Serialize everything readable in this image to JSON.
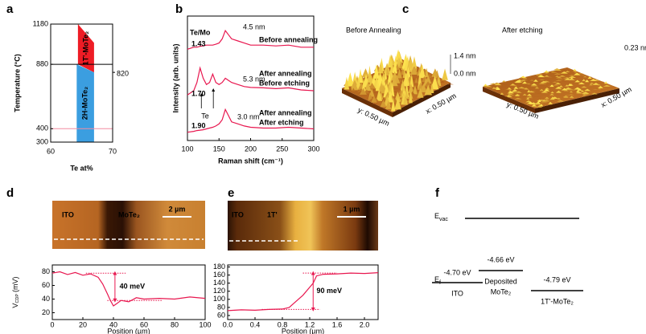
{
  "panels": {
    "a": {
      "label": "a",
      "type": "phase",
      "ylabel": "Temperature (°C)",
      "xlabel": "Te at%",
      "xlim": [
        60,
        70
      ],
      "xticks": [
        60,
        70
      ],
      "ylim": [
        300,
        1180
      ],
      "yticks": [
        300,
        400,
        880,
        1180
      ],
      "hlines": [
        {
          "value": 880,
          "color": "#000000"
        },
        {
          "value": 400,
          "color": "#f48ca0"
        }
      ],
      "boundary_label": 820,
      "regions": [
        {
          "name": "1T'-MoTe₂",
          "color": "#ee1c25",
          "x": [
            64.4,
            64.4,
            67,
            67
          ],
          "y": [
            880,
            1180,
            1040,
            820
          ]
        },
        {
          "name": "2H-MoTe₂",
          "color": "#3b9ee0",
          "x": [
            64.2,
            64.2,
            67,
            67
          ],
          "y": [
            300,
            880,
            820,
            300
          ]
        }
      ]
    },
    "b": {
      "label": "b",
      "type": "line",
      "ylabel": "Intensity (arb. units)",
      "xlabel": "Raman shift (cm⁻¹)",
      "xlim": [
        100,
        300
      ],
      "xticks": [
        100,
        150,
        200,
        250,
        300
      ],
      "ylim": [
        0,
        3
      ],
      "header": "Te/Mo",
      "peak_label": "Te",
      "x": [
        100,
        110,
        115,
        120,
        125,
        130,
        135,
        140,
        145,
        150,
        155,
        160,
        165,
        170,
        180,
        190,
        200,
        220,
        240,
        260,
        280,
        300
      ],
      "series": [
        {
          "name": "1.43",
          "color": "#e8174f",
          "values": [
            2.2,
            2.25,
            2.25,
            2.27,
            2.28,
            2.3,
            2.3,
            2.3,
            2.32,
            2.35,
            2.45,
            2.65,
            2.55,
            2.45,
            2.4,
            2.35,
            2.3,
            2.3,
            2.28,
            2.3,
            2.25,
            2.25
          ]
        },
        {
          "name": "1.70",
          "color": "#e8174f",
          "values": [
            1.1,
            1.2,
            1.4,
            1.75,
            1.5,
            1.35,
            1.4,
            1.6,
            1.4,
            1.35,
            1.4,
            1.5,
            1.45,
            1.4,
            1.35,
            1.3,
            1.28,
            1.27,
            1.25,
            1.27,
            1.22,
            1.2
          ]
        },
        {
          "name": "1.90",
          "color": "#e8174f",
          "values": [
            0.2,
            0.22,
            0.24,
            0.25,
            0.26,
            0.28,
            0.3,
            0.32,
            0.35,
            0.4,
            0.5,
            0.75,
            0.6,
            0.45,
            0.4,
            0.35,
            0.32,
            0.3,
            0.3,
            0.32,
            0.3,
            0.28
          ]
        }
      ],
      "annotations": [
        {
          "text": "4.5 nm",
          "color": "#000000"
        },
        {
          "text": "Before annealing",
          "color": "#000000"
        },
        {
          "text": "5.3 nm",
          "color": "#000000"
        },
        {
          "text": "After annealing",
          "color": "#e8174f"
        },
        {
          "text": "Before etching",
          "color": "#000000"
        },
        {
          "text": "3.0 nm",
          "color": "#000000"
        },
        {
          "text": "After annealing",
          "color": "#e8174f"
        },
        {
          "text": "After etching",
          "color": "#e8174f"
        }
      ]
    },
    "c": {
      "label": "c",
      "images": [
        {
          "title": "Before Annealing",
          "zmax": "1.4 nm",
          "zmin": "0.0 nm",
          "yscale": "y: 0.50 µm",
          "xscale": "x: 0.50 µm"
        },
        {
          "title": "After etching",
          "zmax": "0.23 nm",
          "yscale": "y: 0.50 µm",
          "xscale": "x: 0.50 µm"
        }
      ]
    },
    "d": {
      "label": "d",
      "image": {
        "labels": [
          "ITO",
          "MoTe₂"
        ],
        "scalebar": "2 µm"
      },
      "profile": {
        "type": "line",
        "ylabel": {
          "symbol": "V",
          "subscript": "CDP",
          "unit": "(mV)"
        },
        "xlabel": "Position (µm)",
        "xlim": [
          0,
          100
        ],
        "xticks": [
          0,
          20,
          40,
          60,
          80,
          100
        ],
        "ylim": [
          10,
          90
        ],
        "yticks": [
          20,
          40,
          60,
          80
        ],
        "x": [
          0,
          5,
          10,
          15,
          20,
          25,
          30,
          33,
          36,
          38,
          40,
          42,
          45,
          50,
          55,
          60,
          70,
          80,
          90,
          100
        ],
        "values": [
          78,
          80,
          76,
          79,
          75,
          77,
          72,
          62,
          48,
          38,
          30,
          33,
          38,
          36,
          42,
          40,
          41,
          40,
          43,
          41
        ],
        "color": "#e8174f",
        "guides": [
          78,
          38
        ],
        "annotation": "40 meV"
      }
    },
    "e": {
      "label": "e",
      "image": {
        "labels": [
          "ITO",
          "1T'"
        ],
        "scalebar": "1 µm"
      },
      "profile": {
        "type": "line",
        "xlabel": "Position (µm)",
        "xlim": [
          0,
          2.2
        ],
        "xticks": [
          {
            "value": 0,
            "label": "0.0"
          },
          0.4,
          0.8,
          1.2,
          1.6,
          {
            "value": 2,
            "label": "2.0"
          }
        ],
        "ylim": [
          50,
          185
        ],
        "yticks": [
          60,
          80,
          100,
          120,
          140,
          160,
          180
        ],
        "x": [
          0,
          0.2,
          0.4,
          0.6,
          0.8,
          0.9,
          1.0,
          1.1,
          1.2,
          1.25,
          1.3,
          1.4,
          1.6,
          1.8,
          2.0,
          2.2
        ],
        "values": [
          72,
          74,
          73,
          75,
          76,
          80,
          95,
          110,
          130,
          140,
          158,
          162,
          163,
          165,
          164,
          166
        ],
        "color": "#e8174f",
        "guides": [
          75,
          165
        ],
        "annotation": "90 meV"
      }
    },
    "f": {
      "label": "f",
      "vacuum": {
        "symbol": "E",
        "subscript": "vac"
      },
      "fermi": {
        "symbol": "E",
        "subscript": "f"
      },
      "levels": [
        {
          "energy": "-4.70 eV",
          "name": [
            "ITO"
          ]
        },
        {
          "energy": "-4.66 eV",
          "name": [
            "Deposited",
            "MoTe₂"
          ]
        },
        {
          "energy": "-4.79 eV",
          "name": [
            "1T'-MoTe₂"
          ]
        }
      ]
    }
  }
}
